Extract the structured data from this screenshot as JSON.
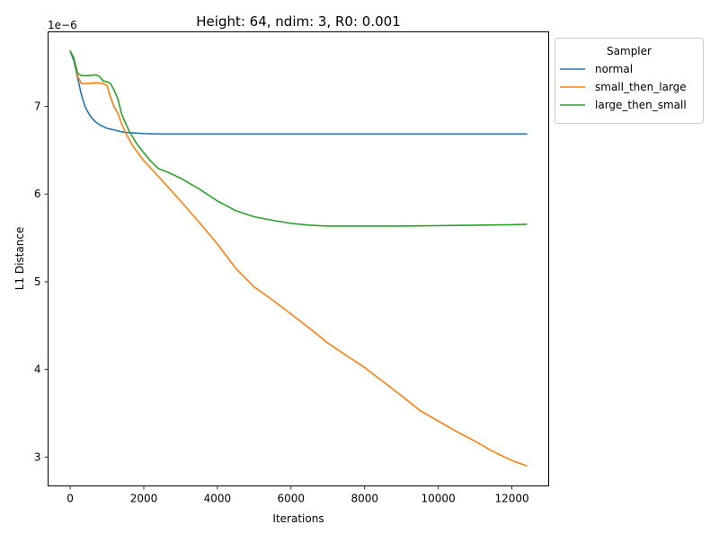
{
  "chart_data": {
    "type": "line",
    "title": "Height: 64, ndim: 3, R0: 0.001",
    "xlabel": "Iterations",
    "ylabel": "L1 Distance",
    "scale_label": "1e−6",
    "xlim": [
      -600,
      13000
    ],
    "ylim": [
      2.67,
      7.85
    ],
    "xticks": [
      0,
      2000,
      4000,
      6000,
      8000,
      10000,
      12000
    ],
    "yticks": [
      3,
      4,
      5,
      6,
      7
    ],
    "grid": false,
    "legend": {
      "title": "Sampler",
      "placement": "outside-top-right"
    },
    "series": [
      {
        "name": "normal",
        "color": "#1f77b4",
        "x": [
          0,
          100,
          200,
          300,
          400,
          500,
          600,
          700,
          800,
          1000,
          1200,
          1400,
          1600,
          1800,
          2000,
          2400,
          3000,
          4000,
          6000,
          8000,
          10000,
          12400
        ],
        "y": [
          7.63,
          7.52,
          7.33,
          7.14,
          7.0,
          6.92,
          6.86,
          6.82,
          6.79,
          6.75,
          6.73,
          6.71,
          6.7,
          6.695,
          6.69,
          6.685,
          6.685,
          6.685,
          6.685,
          6.685,
          6.685,
          6.685
        ]
      },
      {
        "name": "small_then_large",
        "color": "#ff7f0e",
        "x": [
          0,
          100,
          200,
          300,
          500,
          700,
          900,
          1000,
          1100,
          1200,
          1300,
          1400,
          1500,
          1700,
          2000,
          2400,
          3000,
          3500,
          4000,
          4500,
          5000,
          5500,
          6000,
          6500,
          7000,
          7500,
          8000,
          8500,
          9000,
          9500,
          10000,
          10500,
          11000,
          11500,
          12000,
          12400
        ],
        "y": [
          7.63,
          7.55,
          7.35,
          7.26,
          7.26,
          7.27,
          7.26,
          7.24,
          7.1,
          6.99,
          6.92,
          6.8,
          6.7,
          6.55,
          6.38,
          6.2,
          5.92,
          5.68,
          5.43,
          5.15,
          4.94,
          4.79,
          4.63,
          4.47,
          4.3,
          4.16,
          4.02,
          3.86,
          3.7,
          3.53,
          3.41,
          3.29,
          3.18,
          3.06,
          2.96,
          2.9
        ]
      },
      {
        "name": "large_then_small",
        "color": "#2ca02c",
        "x": [
          0,
          100,
          200,
          300,
          500,
          700,
          800,
          900,
          1000,
          1100,
          1200,
          1300,
          1400,
          1600,
          1800,
          2000,
          2200,
          2400,
          2700,
          3000,
          3500,
          4000,
          4500,
          5000,
          5500,
          6000,
          6500,
          7000,
          8000,
          9000,
          10000,
          11000,
          12000,
          12400
        ],
        "y": [
          7.63,
          7.55,
          7.38,
          7.35,
          7.35,
          7.36,
          7.34,
          7.29,
          7.28,
          7.26,
          7.18,
          7.08,
          6.91,
          6.72,
          6.58,
          6.47,
          6.37,
          6.29,
          6.24,
          6.18,
          6.06,
          5.92,
          5.81,
          5.74,
          5.7,
          5.665,
          5.645,
          5.635,
          5.635,
          5.635,
          5.64,
          5.645,
          5.65,
          5.655
        ]
      }
    ]
  }
}
